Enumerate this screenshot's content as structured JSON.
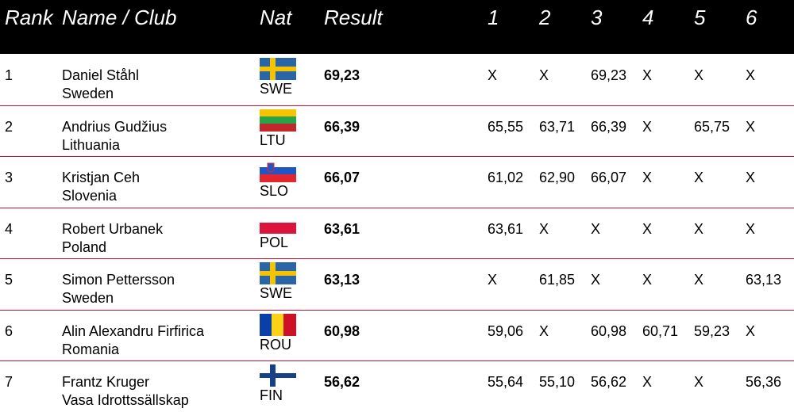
{
  "header": {
    "columns": [
      "Rank",
      "Name / Club",
      "Nat",
      "Result",
      "1",
      "2",
      "3",
      "4",
      "5",
      "6"
    ]
  },
  "rows": [
    {
      "rank": "1",
      "name": "Daniel Ståhl",
      "club": "Sweden",
      "nat": "SWE",
      "result": "69,23",
      "attempts": [
        "X",
        "X",
        "69,23",
        "X",
        "X",
        "X"
      ]
    },
    {
      "rank": "2",
      "name": "Andrius Gudžius",
      "club": "Lithuania",
      "nat": "LTU",
      "result": "66,39",
      "attempts": [
        "65,55",
        "63,71",
        "66,39",
        "X",
        "65,75",
        "X"
      ]
    },
    {
      "rank": "3",
      "name": "Kristjan Ceh",
      "club": "Slovenia",
      "nat": "SLO",
      "result": "66,07",
      "attempts": [
        "61,02",
        "62,90",
        "66,07",
        "X",
        "X",
        "X"
      ]
    },
    {
      "rank": "4",
      "name": "Robert Urbanek",
      "club": "Poland",
      "nat": "POL",
      "result": "63,61",
      "attempts": [
        "63,61",
        "X",
        "X",
        "X",
        "X",
        "X"
      ]
    },
    {
      "rank": "5",
      "name": "Simon Pettersson",
      "club": "Sweden",
      "nat": "SWE",
      "result": "63,13",
      "attempts": [
        "X",
        "61,85",
        "X",
        "X",
        "X",
        "63,13"
      ]
    },
    {
      "rank": "6",
      "name": "Alin Alexandru Firfirica",
      "club": "Romania",
      "nat": "ROU",
      "result": "60,98",
      "attempts": [
        "59,06",
        "X",
        "60,98",
        "60,71",
        "59,23",
        "X"
      ]
    },
    {
      "rank": "7",
      "name": "Frantz Kruger",
      "club": "Vasa Idrottssällskap",
      "nat": "FIN",
      "result": "56,62",
      "attempts": [
        "55,64",
        "55,10",
        "56,62",
        "X",
        "X",
        "56,36"
      ]
    }
  ]
}
